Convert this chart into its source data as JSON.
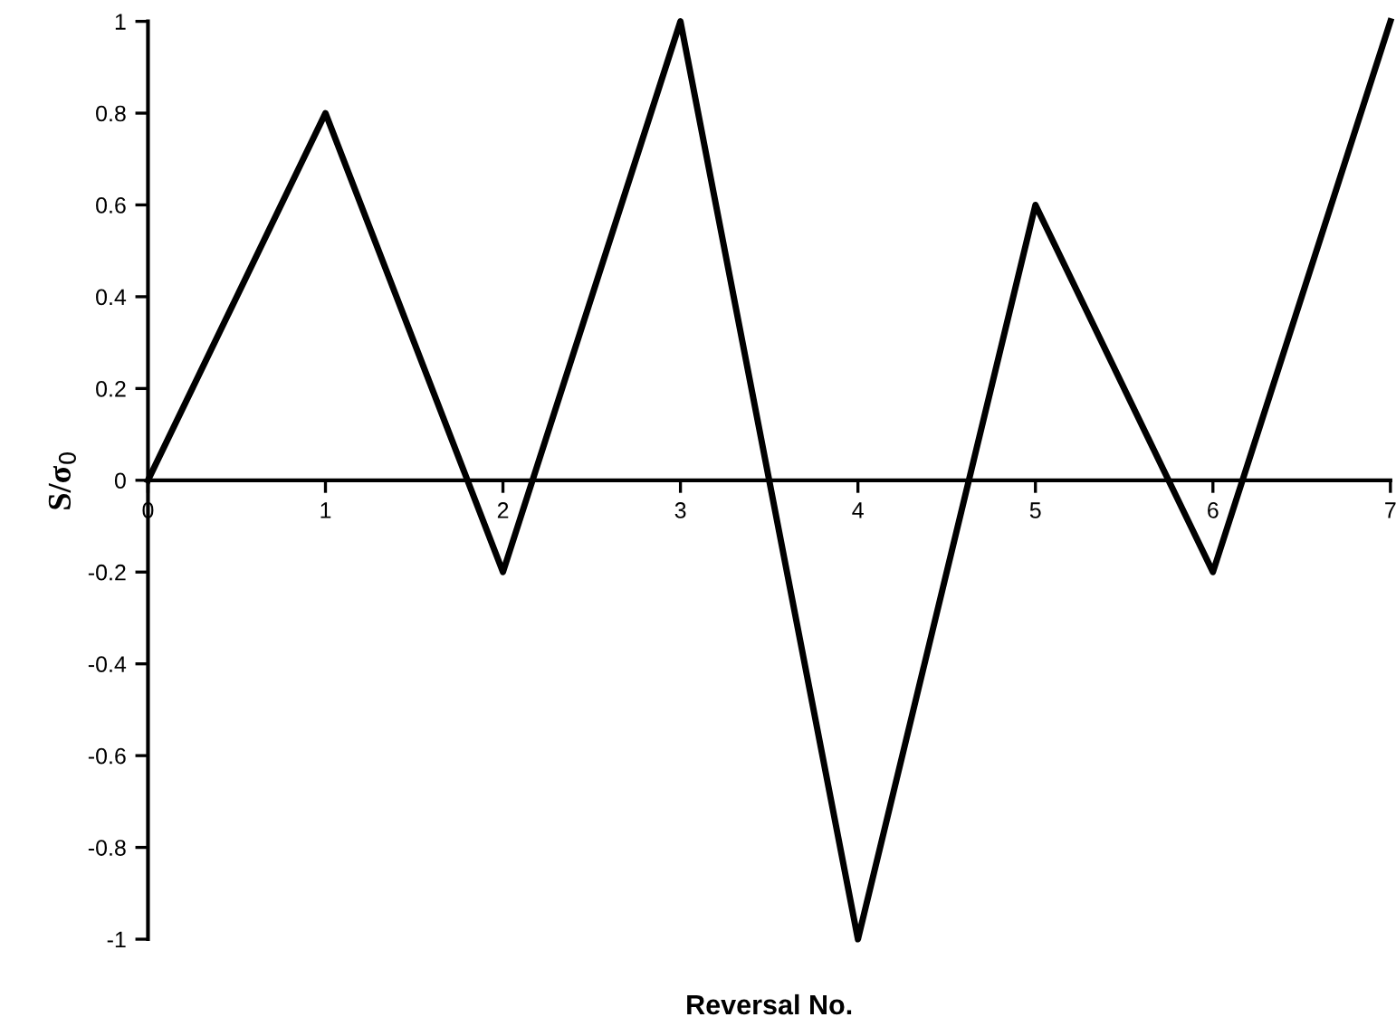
{
  "chart_data": {
    "type": "line",
    "xlabel": "Reversal No.",
    "ylabel": "S/σ$_{0}$",
    "x": [
      0,
      1,
      2,
      3,
      4,
      5,
      6,
      7
    ],
    "series": [
      {
        "color": "#000000",
        "values": [
          0,
          0.8,
          -0.2,
          1,
          -1,
          0.6,
          -0.2,
          1
        ]
      }
    ],
    "xlim": [
      0,
      7
    ],
    "xticks": [
      0,
      1,
      2,
      3,
      4,
      5,
      6,
      7
    ],
    "ylim": [
      -1,
      1
    ],
    "yticks": [
      -1,
      -0.8,
      -0.6,
      -0.4,
      -0.2,
      0,
      0.2,
      0.4,
      0.6,
      0.8,
      1
    ],
    "grid": false,
    "legend": false,
    "marker": "none",
    "line_style": "solid"
  }
}
